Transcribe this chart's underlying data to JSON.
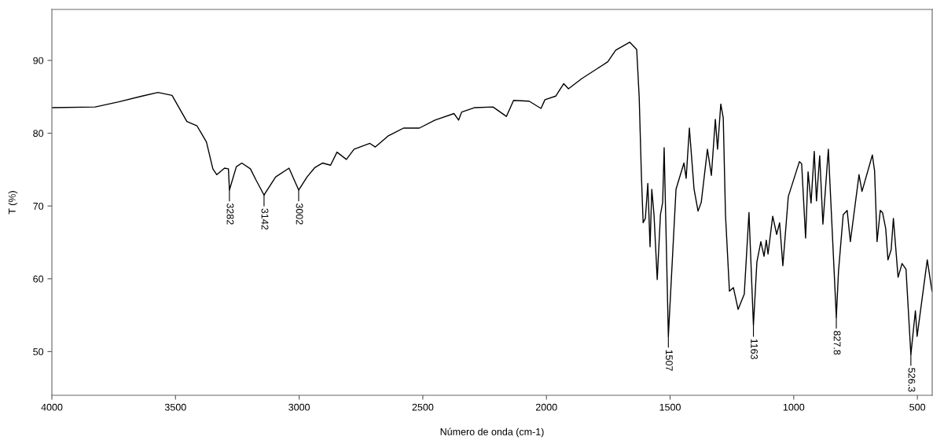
{
  "chart_data": {
    "type": "line",
    "xlabel": "Número de onda (cm-1)",
    "ylabel": "T (%)",
    "xlim": [
      4000,
      440
    ],
    "ylim": [
      44,
      97
    ],
    "xticks": [
      4000,
      3500,
      3000,
      2500,
      2000,
      1500,
      1000,
      500
    ],
    "yticks": [
      50,
      60,
      70,
      80,
      90
    ],
    "grid": false,
    "marker": "none",
    "line_style": "solid",
    "series": [
      {
        "color": "#000000",
        "x": [
          4000,
          3825,
          3730,
          3635,
          3571,
          3514,
          3454,
          3413,
          3375,
          3349,
          3333,
          3302,
          3286,
          3282,
          3254,
          3232,
          3197,
          3175,
          3142,
          3095,
          3041,
          3002,
          2968,
          2936,
          2905,
          2873,
          2847,
          2809,
          2778,
          2714,
          2692,
          2641,
          2578,
          2514,
          2451,
          2374,
          2355,
          2343,
          2292,
          2216,
          2162,
          2133,
          2070,
          2022,
          2006,
          1962,
          1930,
          1911,
          1857,
          1793,
          1752,
          1720,
          1663,
          1635,
          1625,
          1616,
          1609,
          1600,
          1590,
          1581,
          1574,
          1565,
          1552,
          1539,
          1530,
          1524,
          1507,
          1476,
          1444,
          1435,
          1422,
          1403,
          1387,
          1374,
          1349,
          1333,
          1317,
          1308,
          1295,
          1285,
          1276,
          1260,
          1244,
          1225,
          1200,
          1181,
          1163,
          1149,
          1133,
          1120,
          1111,
          1104,
          1085,
          1069,
          1057,
          1044,
          1022,
          977,
          968,
          952,
          942,
          930,
          917,
          908,
          895,
          882,
          860,
          827.8,
          819,
          800,
          784,
          771,
          736,
          724,
          682,
          673,
          663,
          650,
          641,
          628,
          619,
          606,
          597,
          578,
          562,
          546,
          526.3,
          508,
          501,
          460,
          441
        ],
        "values": [
          83.5,
          83.6,
          84.3,
          85.1,
          85.6,
          85.2,
          81.6,
          81.0,
          78.8,
          75.1,
          74.3,
          75.2,
          75.1,
          72.2,
          75.4,
          75.9,
          75.1,
          73.6,
          71.5,
          74.0,
          75.2,
          72.2,
          74.0,
          75.3,
          75.9,
          75.6,
          77.4,
          76.4,
          77.8,
          78.6,
          78.1,
          79.6,
          80.7,
          80.7,
          81.8,
          82.7,
          81.8,
          82.9,
          83.5,
          83.6,
          82.3,
          84.5,
          84.4,
          83.4,
          84.6,
          85.1,
          86.8,
          86.1,
          87.5,
          88.9,
          89.8,
          91.4,
          92.5,
          91.5,
          85.0,
          74.2,
          67.7,
          68.3,
          73.1,
          64.4,
          72.3,
          68.8,
          59.9,
          68.8,
          70.5,
          78.0,
          52.1,
          72.3,
          75.9,
          73.8,
          80.7,
          72.3,
          69.3,
          70.5,
          77.8,
          74.2,
          81.9,
          77.8,
          84.0,
          82.1,
          68.8,
          58.3,
          58.8,
          55.8,
          57.9,
          69.1,
          53.6,
          62.3,
          65.1,
          63.1,
          65.3,
          63.4,
          68.6,
          66.1,
          67.7,
          61.8,
          71.3,
          76.1,
          75.8,
          65.6,
          74.7,
          70.4,
          77.5,
          70.7,
          76.9,
          67.5,
          77.8,
          54.7,
          61.0,
          68.8,
          69.4,
          65.1,
          74.3,
          72.0,
          77.0,
          74.8,
          65.1,
          69.4,
          69.1,
          66.9,
          62.6,
          64.0,
          68.3,
          60.2,
          62.1,
          61.3,
          49.6,
          55.6,
          52.1,
          62.6,
          58.3
        ]
      }
    ],
    "annotations": [
      {
        "text": "3282",
        "x": 3282,
        "y": 72.2
      },
      {
        "text": "3142",
        "x": 3142,
        "y": 71.5
      },
      {
        "text": "3002",
        "x": 3002,
        "y": 72.2
      },
      {
        "text": "1507",
        "x": 1507,
        "y": 52.1
      },
      {
        "text": "1163",
        "x": 1163,
        "y": 53.6
      },
      {
        "text": "827.8",
        "x": 827.8,
        "y": 54.7
      },
      {
        "text": "526.3",
        "x": 526.3,
        "y": 49.6
      }
    ]
  }
}
